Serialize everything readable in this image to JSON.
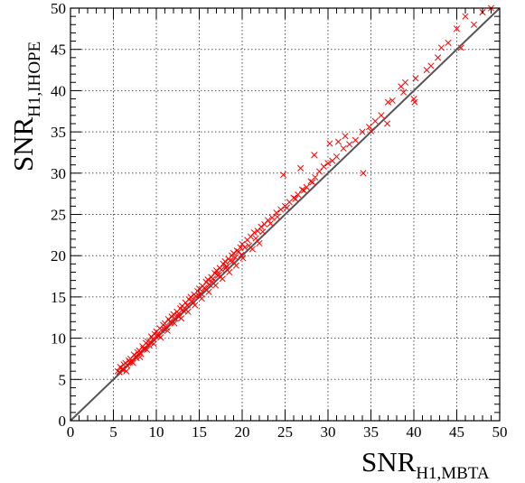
{
  "chart_data": {
    "type": "scatter",
    "title": "",
    "xlabel": {
      "main": "SNR",
      "sub": "H1,MBTA"
    },
    "ylabel": {
      "main": "SNR",
      "sub": "H1,IHOPE"
    },
    "xlim": [
      0,
      50
    ],
    "ylim": [
      0,
      50
    ],
    "xticks": [
      "0",
      "5",
      "10",
      "15",
      "20",
      "25",
      "30",
      "35",
      "40",
      "45",
      "50"
    ],
    "yticks": [
      "0",
      "5",
      "10",
      "15",
      "20",
      "25",
      "30",
      "35",
      "40",
      "45",
      "50"
    ],
    "grid": true,
    "legend": "none",
    "colors": {
      "points": "#ff0000",
      "reference_line": "#555555"
    },
    "reference_line": {
      "from": [
        0,
        0
      ],
      "to": [
        50,
        50
      ]
    },
    "series": [
      {
        "marker": "x",
        "points": [
          [
            5.5,
            6.0
          ],
          [
            5.8,
            6.5
          ],
          [
            6.0,
            6.2
          ],
          [
            6.2,
            6.8
          ],
          [
            6.4,
            7.0
          ],
          [
            6.6,
            6.7
          ],
          [
            6.8,
            7.3
          ],
          [
            7.0,
            7.5
          ],
          [
            7.2,
            7.1
          ],
          [
            7.4,
            8.0
          ],
          [
            7.6,
            7.8
          ],
          [
            7.8,
            8.3
          ],
          [
            8.0,
            8.5
          ],
          [
            8.2,
            8.1
          ],
          [
            8.4,
            9.0
          ],
          [
            8.6,
            8.8
          ],
          [
            8.8,
            9.4
          ],
          [
            9.0,
            9.6
          ],
          [
            9.2,
            9.1
          ],
          [
            9.4,
            10.2
          ],
          [
            9.6,
            9.9
          ],
          [
            9.8,
            10.5
          ],
          [
            10.0,
            10.8
          ],
          [
            10.2,
            10.3
          ],
          [
            10.4,
            11.2
          ],
          [
            10.6,
            11.0
          ],
          [
            10.8,
            11.6
          ],
          [
            11.0,
            11.8
          ],
          [
            11.2,
            11.3
          ],
          [
            11.4,
            12.3
          ],
          [
            11.6,
            12.0
          ],
          [
            11.8,
            12.6
          ],
          [
            12.0,
            12.9
          ],
          [
            12.2,
            12.4
          ],
          [
            12.4,
            13.2
          ],
          [
            12.6,
            13.0
          ],
          [
            12.8,
            13.6
          ],
          [
            13.0,
            13.9
          ],
          [
            13.2,
            13.3
          ],
          [
            13.4,
            14.3
          ],
          [
            13.6,
            14.0
          ],
          [
            13.8,
            14.7
          ],
          [
            14.0,
            15.0
          ],
          [
            14.2,
            14.5
          ],
          [
            14.4,
            15.3
          ],
          [
            14.6,
            15.1
          ],
          [
            14.8,
            15.7
          ],
          [
            15.0,
            16.0
          ],
          [
            15.2,
            15.4
          ],
          [
            15.4,
            16.3
          ],
          [
            15.6,
            16.1
          ],
          [
            15.8,
            16.8
          ],
          [
            16.0,
            17.1
          ],
          [
            16.2,
            16.5
          ],
          [
            16.4,
            17.4
          ],
          [
            16.6,
            17.2
          ],
          [
            16.8,
            17.9
          ],
          [
            17.0,
            18.2
          ],
          [
            17.2,
            17.6
          ],
          [
            17.4,
            18.5
          ],
          [
            17.6,
            18.3
          ],
          [
            17.8,
            19.0
          ],
          [
            18.0,
            19.3
          ],
          [
            18.2,
            18.7
          ],
          [
            18.4,
            19.6
          ],
          [
            18.6,
            19.4
          ],
          [
            18.8,
            20.0
          ],
          [
            19.0,
            20.3
          ],
          [
            19.2,
            19.8
          ],
          [
            19.4,
            20.6
          ],
          [
            19.6,
            20.5
          ],
          [
            19.8,
            21.0
          ],
          [
            20.0,
            21.4
          ],
          [
            20.3,
            21.0
          ],
          [
            20.6,
            21.9
          ],
          [
            21.0,
            22.3
          ],
          [
            21.4,
            22.8
          ],
          [
            21.8,
            23.0
          ],
          [
            22.2,
            23.5
          ],
          [
            22.6,
            23.8
          ],
          [
            23.0,
            24.3
          ],
          [
            23.5,
            24.6
          ],
          [
            24.0,
            25.2
          ],
          [
            24.5,
            25.6
          ],
          [
            25.0,
            26.0
          ],
          [
            25.5,
            26.5
          ],
          [
            26.0,
            27.0
          ],
          [
            26.5,
            27.4
          ],
          [
            27.0,
            28.0
          ],
          [
            27.5,
            28.3
          ],
          [
            28.0,
            29.0
          ],
          [
            28.5,
            29.5
          ],
          [
            29.0,
            30.2
          ],
          [
            29.5,
            30.8
          ],
          [
            30.0,
            31.2
          ],
          [
            30.5,
            31.5
          ],
          [
            31.0,
            32.0
          ],
          [
            31.8,
            33.0
          ],
          [
            32.5,
            33.5
          ],
          [
            33.2,
            34.0
          ],
          [
            34.0,
            35.0
          ],
          [
            34.8,
            35.6
          ],
          [
            35.5,
            36.3
          ],
          [
            36.2,
            37.0
          ],
          [
            37.0,
            38.6
          ],
          [
            37.5,
            38.8
          ],
          [
            38.5,
            40.5
          ],
          [
            39.0,
            41.0
          ],
          [
            40.0,
            39.0
          ],
          [
            40.2,
            41.5
          ],
          [
            41.5,
            42.5
          ],
          [
            42.8,
            44.0
          ],
          [
            43.2,
            45.2
          ],
          [
            44.0,
            45.8
          ],
          [
            45.0,
            47.5
          ],
          [
            45.5,
            45.2
          ],
          [
            46.0,
            49.0
          ],
          [
            47.0,
            48.0
          ],
          [
            48.0,
            49.5
          ],
          [
            49.0,
            50.0
          ],
          [
            6.5,
            6.0
          ],
          [
            7.3,
            7.0
          ],
          [
            8.1,
            7.7
          ],
          [
            8.9,
            8.6
          ],
          [
            9.7,
            9.3
          ],
          [
            10.5,
            10.1
          ],
          [
            11.3,
            10.9
          ],
          [
            12.1,
            11.8
          ],
          [
            12.9,
            12.4
          ],
          [
            13.7,
            13.2
          ],
          [
            14.5,
            14.0
          ],
          [
            15.3,
            14.8
          ],
          [
            16.1,
            15.6
          ],
          [
            16.9,
            16.4
          ],
          [
            17.7,
            17.2
          ],
          [
            18.5,
            18.0
          ],
          [
            19.3,
            18.8
          ],
          [
            20.1,
            19.7
          ],
          [
            21.2,
            20.8
          ],
          [
            22.0,
            21.5
          ],
          [
            24.8,
            29.8
          ],
          [
            26.8,
            30.6
          ],
          [
            28.4,
            32.2
          ],
          [
            30.2,
            33.6
          ],
          [
            31.2,
            33.8
          ],
          [
            32.0,
            34.5
          ],
          [
            34.1,
            30.0
          ],
          [
            35.0,
            35.1
          ],
          [
            36.9,
            36.0
          ],
          [
            38.8,
            39.8
          ],
          [
            40.1,
            38.6
          ],
          [
            42.0,
            43.0
          ],
          [
            5.7,
            5.9
          ],
          [
            6.1,
            6.3
          ],
          [
            6.9,
            7.1
          ],
          [
            7.7,
            7.6
          ],
          [
            8.5,
            8.7
          ],
          [
            9.3,
            9.5
          ],
          [
            10.1,
            10.4
          ],
          [
            10.9,
            11.1
          ],
          [
            11.7,
            11.9
          ],
          [
            12.5,
            12.7
          ],
          [
            13.3,
            13.6
          ],
          [
            14.1,
            14.4
          ],
          [
            14.9,
            15.2
          ],
          [
            15.7,
            16.0
          ],
          [
            16.5,
            16.8
          ],
          [
            17.3,
            17.7
          ],
          [
            18.1,
            18.5
          ],
          [
            18.9,
            19.3
          ],
          [
            19.9,
            20.1
          ],
          [
            20.8,
            21.2
          ],
          [
            21.6,
            22.1
          ],
          [
            22.4,
            22.9
          ],
          [
            23.3,
            23.9
          ],
          [
            24.1,
            24.7
          ],
          [
            25.2,
            25.8
          ],
          [
            26.2,
            26.9
          ],
          [
            27.2,
            27.9
          ],
          [
            28.2,
            28.9
          ]
        ]
      }
    ]
  }
}
